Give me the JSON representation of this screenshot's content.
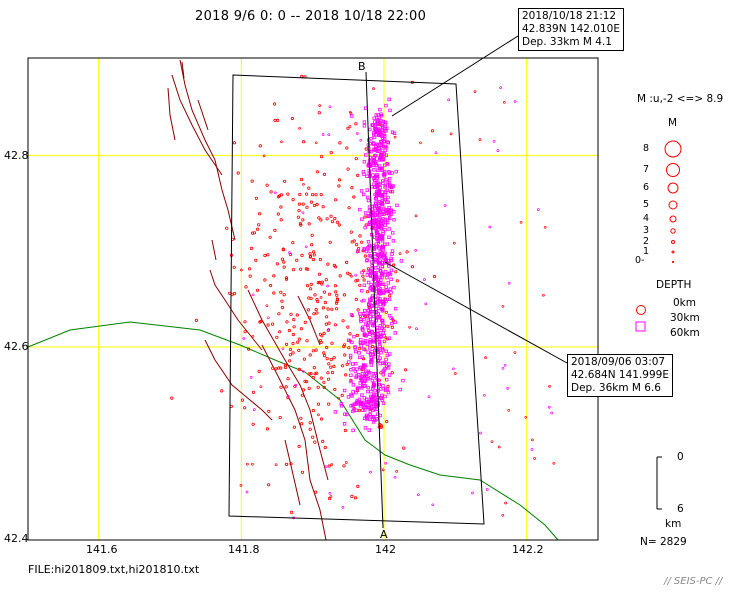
{
  "title": "2018 9/6 0: 0 -- 2018 10/18 22:00",
  "callouts": {
    "top": {
      "line1": "2018/10/18 21:12",
      "line2": "42.839N  142.010E",
      "line3": "Dep. 33km    M 4.1"
    },
    "main": {
      "line1": "2018/09/06 03:07",
      "line2": "42.684N  141.999E",
      "line3": "Dep. 36km    M 6.6"
    }
  },
  "axes": {
    "y_ticks": [
      "42.8",
      "42.6",
      "42.4"
    ],
    "x_ticks": [
      "141.6",
      "141.8",
      "142",
      "142.2"
    ]
  },
  "section": {
    "start_label": "A",
    "end_label": "B"
  },
  "legend": {
    "magnitude_range": "M :u,-2 <=> 8.9",
    "magnitude_title": "M",
    "magnitude_levels": [
      "8",
      "7",
      "6",
      "5",
      "4",
      "3",
      "2",
      "1",
      "0-"
    ],
    "depth_title": "DEPTH",
    "depth_levels": [
      "0km",
      "30km",
      "60km"
    ],
    "scale_top": "0",
    "scale_bottom": "6",
    "scale_unit": "km",
    "count": "N= 2829"
  },
  "footer": {
    "file": "FILE:hi201809.txt,hi201810.txt",
    "credit": "// SEIS-PC //"
  },
  "colors": {
    "grid": "#ffff00",
    "coast": "#008000",
    "fault": "#8b0000",
    "shallow": "#ff0000",
    "deep": "#ff00ff",
    "frame": "#000000"
  }
}
